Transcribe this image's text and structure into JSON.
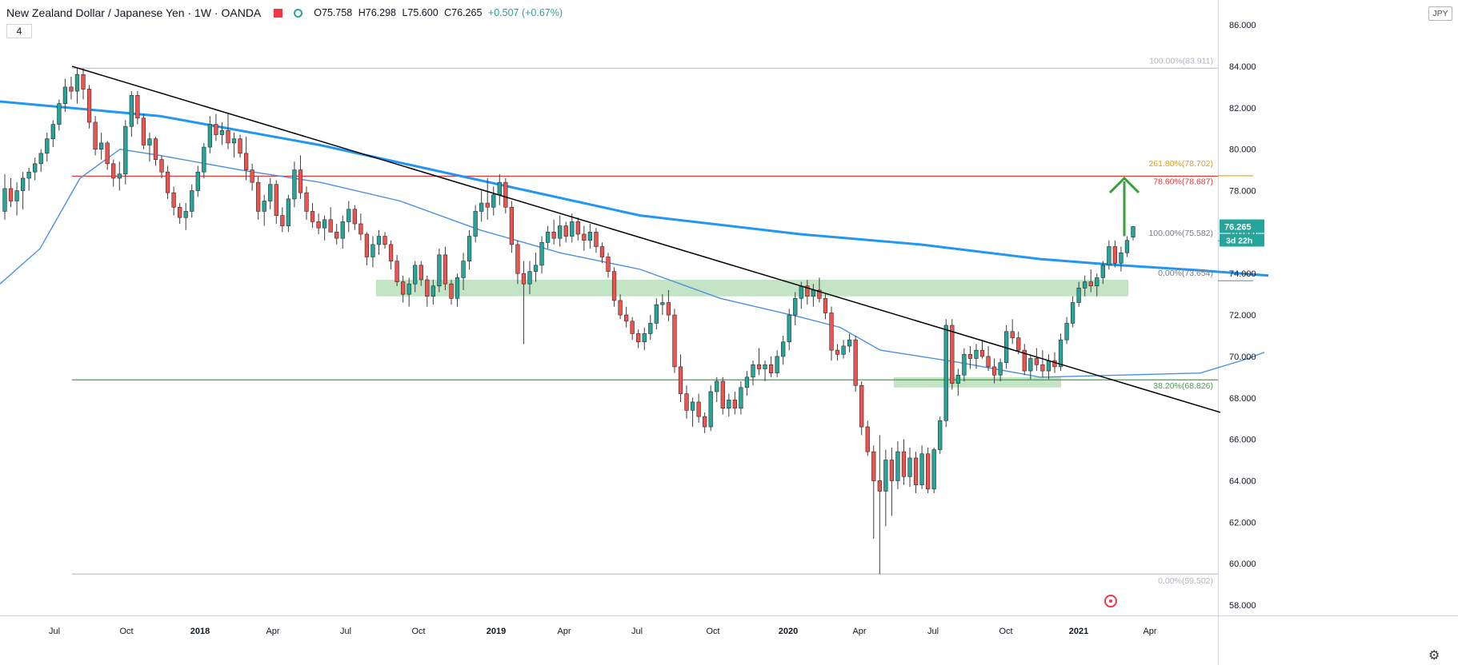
{
  "header": {
    "symbol_title": "New Zealand Dollar / Japanese Yen · 1W · OANDA",
    "open": "O75.758",
    "high": "H76.298",
    "low": "L75.600",
    "close": "C76.265",
    "change": "+0.507 (+0.67%)",
    "interval_badge": "4",
    "currency_badge": "JPY"
  },
  "colors": {
    "up": "#26a69a",
    "down": "#ef5350",
    "ma_thick": "#2196f3",
    "ma_thin": "#4a90e2",
    "trendline": "#000000",
    "fib_level": "#b2b5be",
    "red_level": "#e53935",
    "green_level": "#43a047",
    "zone": "#a5d6a7",
    "fib_261": "#f5a623"
  },
  "price_scale": {
    "ticks": [
      "86.000",
      "84.000",
      "82.000",
      "80.000",
      "78.000",
      "76.000",
      "74.000",
      "72.000",
      "70.000",
      "68.000",
      "66.000",
      "64.000",
      "62.000",
      "60.000",
      "58.000"
    ],
    "last_price": "76.265",
    "countdown": "3d 22h"
  },
  "time_axis": {
    "labels": [
      "Jul",
      "Oct",
      "2018",
      "Apr",
      "Jul",
      "Oct",
      "2019",
      "Apr",
      "Jul",
      "Oct",
      "2020",
      "Apr",
      "Jul",
      "Oct",
      "2021",
      "Apr"
    ]
  },
  "level_labels": {
    "fib_top_100": "100.00%(83.911)",
    "fib_261": "261.80%(78.702)",
    "fib_786": "78.60%(78.687)",
    "fib_100_recent": "100.00%(75.582)",
    "fib_0_recent": "0.00%(73.654)",
    "fib_382": "38.20%(68.826)",
    "fib_bottom_0": "0.00%(59.502)"
  },
  "chart_data": {
    "type": "candlestick",
    "y_range": [
      57.5,
      87.2
    ],
    "candles": [
      [
        77.0,
        78.8,
        76.6,
        78.1
      ],
      [
        78.1,
        78.6,
        77.2,
        77.5
      ],
      [
        77.5,
        78.4,
        76.8,
        78.0
      ],
      [
        78.0,
        78.9,
        77.1,
        78.6
      ],
      [
        78.6,
        79.1,
        78.0,
        78.9
      ],
      [
        78.9,
        79.6,
        78.5,
        79.3
      ],
      [
        79.3,
        80.0,
        78.9,
        79.8
      ],
      [
        79.8,
        80.8,
        79.4,
        80.5
      ],
      [
        80.5,
        81.4,
        80.1,
        81.2
      ],
      [
        81.2,
        82.4,
        80.9,
        82.2
      ],
      [
        82.2,
        83.4,
        81.8,
        83.0
      ],
      [
        83.0,
        83.5,
        82.4,
        82.8
      ],
      [
        82.8,
        83.9,
        82.2,
        83.6
      ],
      [
        83.6,
        83.9,
        82.4,
        82.9
      ],
      [
        82.9,
        83.1,
        81.0,
        81.3
      ],
      [
        81.3,
        81.6,
        79.7,
        80.0
      ],
      [
        80.0,
        80.8,
        79.5,
        80.3
      ],
      [
        80.3,
        80.4,
        79.0,
        79.3
      ],
      [
        79.3,
        79.5,
        78.2,
        78.6
      ],
      [
        78.6,
        79.4,
        78.0,
        78.8
      ],
      [
        78.8,
        81.4,
        78.3,
        81.1
      ],
      [
        81.1,
        82.8,
        80.6,
        82.6
      ],
      [
        82.6,
        82.8,
        81.2,
        81.5
      ],
      [
        81.5,
        81.7,
        80.0,
        80.2
      ],
      [
        80.2,
        80.8,
        79.4,
        80.5
      ],
      [
        80.5,
        80.6,
        79.2,
        79.5
      ],
      [
        79.5,
        79.7,
        78.6,
        78.9
      ],
      [
        78.9,
        79.2,
        77.6,
        77.9
      ],
      [
        77.9,
        78.2,
        76.8,
        77.2
      ],
      [
        77.2,
        77.4,
        76.4,
        76.7
      ],
      [
        76.7,
        77.4,
        76.1,
        77.0
      ],
      [
        77.0,
        78.3,
        76.7,
        78.0
      ],
      [
        78.0,
        79.2,
        77.7,
        78.9
      ],
      [
        78.9,
        80.3,
        78.6,
        80.1
      ],
      [
        80.1,
        81.6,
        79.8,
        81.2
      ],
      [
        81.2,
        81.7,
        80.4,
        80.7
      ],
      [
        80.7,
        81.3,
        80.2,
        80.9
      ],
      [
        80.9,
        81.7,
        80.0,
        80.3
      ],
      [
        80.3,
        80.8,
        79.6,
        80.5
      ],
      [
        80.5,
        80.7,
        79.6,
        79.8
      ],
      [
        79.8,
        80.6,
        78.5,
        79.0
      ],
      [
        79.0,
        79.3,
        78.0,
        78.4
      ],
      [
        78.4,
        78.7,
        76.6,
        77.0
      ],
      [
        77.0,
        77.8,
        76.3,
        77.5
      ],
      [
        77.5,
        78.6,
        77.1,
        78.3
      ],
      [
        78.3,
        78.5,
        76.4,
        76.8
      ],
      [
        76.8,
        77.2,
        76.0,
        76.3
      ],
      [
        76.3,
        77.8,
        76.0,
        77.6
      ],
      [
        77.6,
        79.4,
        77.2,
        79.0
      ],
      [
        79.0,
        79.7,
        77.6,
        77.9
      ],
      [
        77.9,
        78.2,
        76.6,
        77.0
      ],
      [
        77.0,
        77.4,
        76.2,
        76.5
      ],
      [
        76.5,
        76.9,
        75.9,
        76.2
      ],
      [
        76.2,
        76.8,
        75.6,
        76.6
      ],
      [
        76.6,
        77.2,
        76.0,
        76.0
      ],
      [
        76.0,
        76.4,
        75.4,
        75.7
      ],
      [
        75.7,
        76.8,
        75.2,
        76.5
      ],
      [
        76.5,
        77.5,
        76.0,
        77.1
      ],
      [
        77.1,
        77.3,
        76.1,
        76.4
      ],
      [
        76.4,
        76.9,
        75.6,
        75.9
      ],
      [
        75.9,
        76.0,
        74.4,
        74.8
      ],
      [
        74.8,
        75.8,
        74.3,
        75.4
      ],
      [
        75.4,
        76.1,
        74.9,
        75.8
      ],
      [
        75.8,
        76.0,
        75.2,
        75.4
      ],
      [
        75.4,
        75.6,
        74.2,
        74.6
      ],
      [
        74.6,
        74.9,
        73.4,
        73.6
      ],
      [
        73.6,
        73.9,
        72.6,
        73.0
      ],
      [
        73.0,
        73.8,
        72.4,
        73.5
      ],
      [
        73.5,
        74.6,
        73.1,
        74.4
      ],
      [
        74.4,
        74.6,
        73.4,
        73.7
      ],
      [
        73.7,
        73.9,
        72.4,
        72.9
      ],
      [
        72.9,
        73.7,
        72.5,
        73.4
      ],
      [
        73.4,
        75.2,
        73.1,
        74.9
      ],
      [
        74.9,
        75.3,
        73.2,
        73.5
      ],
      [
        73.5,
        73.7,
        72.5,
        72.8
      ],
      [
        72.8,
        74.0,
        72.4,
        73.8
      ],
      [
        73.8,
        75.0,
        73.2,
        74.6
      ],
      [
        74.6,
        76.1,
        74.2,
        75.8
      ],
      [
        75.8,
        77.3,
        75.5,
        77.0
      ],
      [
        77.0,
        78.0,
        76.5,
        77.4
      ],
      [
        77.4,
        78.6,
        76.6,
        77.2
      ],
      [
        77.2,
        78.2,
        76.8,
        77.8
      ],
      [
        77.8,
        78.8,
        77.3,
        78.4
      ],
      [
        78.4,
        78.6,
        76.9,
        77.2
      ],
      [
        77.2,
        77.5,
        75.0,
        75.4
      ],
      [
        75.4,
        75.6,
        73.5,
        74.0
      ],
      [
        74.0,
        74.6,
        70.6,
        73.5
      ],
      [
        73.5,
        74.6,
        73.0,
        74.1
      ],
      [
        74.1,
        75.0,
        73.6,
        74.4
      ],
      [
        74.4,
        75.8,
        74.0,
        75.5
      ],
      [
        75.5,
        76.3,
        75.2,
        76.0
      ],
      [
        76.0,
        76.6,
        75.4,
        75.7
      ],
      [
        75.7,
        76.8,
        75.3,
        76.3
      ],
      [
        76.3,
        76.5,
        75.5,
        75.8
      ],
      [
        75.8,
        76.9,
        75.5,
        76.5
      ],
      [
        76.5,
        76.7,
        75.6,
        75.9
      ],
      [
        75.9,
        76.3,
        75.1,
        75.6
      ],
      [
        75.6,
        76.4,
        75.2,
        76.0
      ],
      [
        76.0,
        76.2,
        75.0,
        75.3
      ],
      [
        75.3,
        75.5,
        74.5,
        74.8
      ],
      [
        74.8,
        75.0,
        73.8,
        74.1
      ],
      [
        74.1,
        74.3,
        72.4,
        72.7
      ],
      [
        72.7,
        73.0,
        71.8,
        72.0
      ],
      [
        72.0,
        72.4,
        71.4,
        71.7
      ],
      [
        71.7,
        71.9,
        70.8,
        71.1
      ],
      [
        71.1,
        71.3,
        70.4,
        70.7
      ],
      [
        70.7,
        71.4,
        70.3,
        71.1
      ],
      [
        71.1,
        72.0,
        70.8,
        71.6
      ],
      [
        71.6,
        72.8,
        71.3,
        72.5
      ],
      [
        72.5,
        73.0,
        72.0,
        72.6
      ],
      [
        72.6,
        73.2,
        71.7,
        72.0
      ],
      [
        72.0,
        72.3,
        69.2,
        69.5
      ],
      [
        69.5,
        70.1,
        67.8,
        68.2
      ],
      [
        68.2,
        68.6,
        67.0,
        67.4
      ],
      [
        67.4,
        68.0,
        66.6,
        67.8
      ],
      [
        67.8,
        68.2,
        66.8,
        67.1
      ],
      [
        67.1,
        67.3,
        66.3,
        66.6
      ],
      [
        66.6,
        68.6,
        66.4,
        68.3
      ],
      [
        68.3,
        69.0,
        67.8,
        68.8
      ],
      [
        68.8,
        69.0,
        67.2,
        67.5
      ],
      [
        67.5,
        68.2,
        67.1,
        67.9
      ],
      [
        67.9,
        68.3,
        67.2,
        67.5
      ],
      [
        67.5,
        68.8,
        67.2,
        68.5
      ],
      [
        68.5,
        69.3,
        68.1,
        69.0
      ],
      [
        69.0,
        69.8,
        68.6,
        69.6
      ],
      [
        69.6,
        70.4,
        69.1,
        69.4
      ],
      [
        69.4,
        69.8,
        68.8,
        69.6
      ],
      [
        69.6,
        70.0,
        69.0,
        69.2
      ],
      [
        69.2,
        70.3,
        69.0,
        70.0
      ],
      [
        70.0,
        71.0,
        69.6,
        70.7
      ],
      [
        70.7,
        72.3,
        70.3,
        72.0
      ],
      [
        72.0,
        73.1,
        71.5,
        72.8
      ],
      [
        72.8,
        73.6,
        72.3,
        73.4
      ],
      [
        73.4,
        73.7,
        72.5,
        72.9
      ],
      [
        72.9,
        73.5,
        72.4,
        73.2
      ],
      [
        73.2,
        73.8,
        72.6,
        72.8
      ],
      [
        72.8,
        73.0,
        71.8,
        72.1
      ],
      [
        72.1,
        72.4,
        69.8,
        70.3
      ],
      [
        70.3,
        70.6,
        69.8,
        70.1
      ],
      [
        70.1,
        70.8,
        69.9,
        70.5
      ],
      [
        70.5,
        71.1,
        70.2,
        70.8
      ],
      [
        70.8,
        71.0,
        68.3,
        68.6
      ],
      [
        68.6,
        68.8,
        66.2,
        66.6
      ],
      [
        66.6,
        66.9,
        65.2,
        65.4
      ],
      [
        65.4,
        65.7,
        61.2,
        64.0
      ],
      [
        64.0,
        66.2,
        59.5,
        63.5
      ],
      [
        63.5,
        65.5,
        61.8,
        65.0
      ],
      [
        65.0,
        65.6,
        62.3,
        64.0
      ],
      [
        64.0,
        65.9,
        63.6,
        65.4
      ],
      [
        65.4,
        66.0,
        63.8,
        64.2
      ],
      [
        64.2,
        65.6,
        63.7,
        65.1
      ],
      [
        65.1,
        65.4,
        63.4,
        63.8
      ],
      [
        63.8,
        65.7,
        63.6,
        65.3
      ],
      [
        65.3,
        65.6,
        63.4,
        63.6
      ],
      [
        63.6,
        65.6,
        63.4,
        65.5
      ],
      [
        65.5,
        67.1,
        65.3,
        66.9
      ],
      [
        66.9,
        71.8,
        66.6,
        71.5
      ],
      [
        71.5,
        71.8,
        68.4,
        68.7
      ],
      [
        68.7,
        69.4,
        68.1,
        69.1
      ],
      [
        69.1,
        70.4,
        68.8,
        70.1
      ],
      [
        70.1,
        70.5,
        69.4,
        69.9
      ],
      [
        69.9,
        70.6,
        69.4,
        70.3
      ],
      [
        70.3,
        70.8,
        69.9,
        70.0
      ],
      [
        70.0,
        70.5,
        69.3,
        69.5
      ],
      [
        69.5,
        69.9,
        68.7,
        69.1
      ],
      [
        69.1,
        69.9,
        68.8,
        69.7
      ],
      [
        69.7,
        71.5,
        69.4,
        71.2
      ],
      [
        71.2,
        71.8,
        70.6,
        70.9
      ],
      [
        70.9,
        71.2,
        70.1,
        70.3
      ],
      [
        70.3,
        70.6,
        69.1,
        69.3
      ],
      [
        69.3,
        70.1,
        68.9,
        69.9
      ],
      [
        69.9,
        70.4,
        69.3,
        69.6
      ],
      [
        69.6,
        70.3,
        69.0,
        69.3
      ],
      [
        69.3,
        70.1,
        68.9,
        69.8
      ],
      [
        69.8,
        70.2,
        69.2,
        69.5
      ],
      [
        69.5,
        71.1,
        69.3,
        70.8
      ],
      [
        70.8,
        71.9,
        70.6,
        71.6
      ],
      [
        71.6,
        72.9,
        71.4,
        72.6
      ],
      [
        72.6,
        73.6,
        72.4,
        73.3
      ],
      [
        73.3,
        73.9,
        72.9,
        73.6
      ],
      [
        73.6,
        74.2,
        73.1,
        73.4
      ],
      [
        73.4,
        74.0,
        72.9,
        73.8
      ],
      [
        73.8,
        74.6,
        73.5,
        74.4
      ],
      [
        74.4,
        75.6,
        74.2,
        75.3
      ],
      [
        75.3,
        75.6,
        74.3,
        74.5
      ],
      [
        74.5,
        75.3,
        74.1,
        75.0
      ],
      [
        75.0,
        75.8,
        74.8,
        75.6
      ],
      [
        75.758,
        76.298,
        75.6,
        76.265
      ]
    ],
    "moving_average_thick": [
      [
        0,
        82.3
      ],
      [
        200,
        81.6
      ],
      [
        400,
        80.2
      ],
      [
        600,
        78.5
      ],
      [
        800,
        76.8
      ],
      [
        1000,
        75.9
      ],
      [
        1150,
        75.4
      ],
      [
        1300,
        74.7
      ],
      [
        1400,
        74.4
      ],
      [
        1500,
        74.15
      ],
      [
        1585,
        73.9
      ]
    ],
    "moving_average_thin": [
      [
        0,
        73.5
      ],
      [
        50,
        75.2
      ],
      [
        100,
        78.6
      ],
      [
        150,
        80.0
      ],
      [
        200,
        79.7
      ],
      [
        300,
        79.0
      ],
      [
        400,
        78.4
      ],
      [
        500,
        77.5
      ],
      [
        600,
        76.1
      ],
      [
        700,
        75.0
      ],
      [
        800,
        74.2
      ],
      [
        900,
        72.8
      ],
      [
        1000,
        71.9
      ],
      [
        1050,
        71.4
      ],
      [
        1100,
        70.3
      ],
      [
        1200,
        69.7
      ],
      [
        1300,
        69.0
      ],
      [
        1400,
        69.1
      ],
      [
        1500,
        69.2
      ],
      [
        1560,
        69.9
      ],
      [
        1580,
        70.2
      ]
    ],
    "trendline": {
      "start": [
        90,
        84.0
      ],
      "end": [
        1525,
        67.3
      ]
    },
    "levels": {
      "red": 78.7,
      "green": 68.87,
      "fib_top": 83.911,
      "fib_bottom": 59.502,
      "fib_recent_top": 75.582,
      "fib_recent_bottom": 73.654
    },
    "zones": [
      {
        "x0": 470,
        "x1": 1410,
        "y_low": 72.9,
        "y_high": 73.7
      },
      {
        "x0": 1117,
        "x1": 1326,
        "y_low": 68.5,
        "y_high": 69.0
      }
    ],
    "target_arrow": {
      "x": 1405,
      "from": 75.8,
      "to": 78.6
    }
  }
}
